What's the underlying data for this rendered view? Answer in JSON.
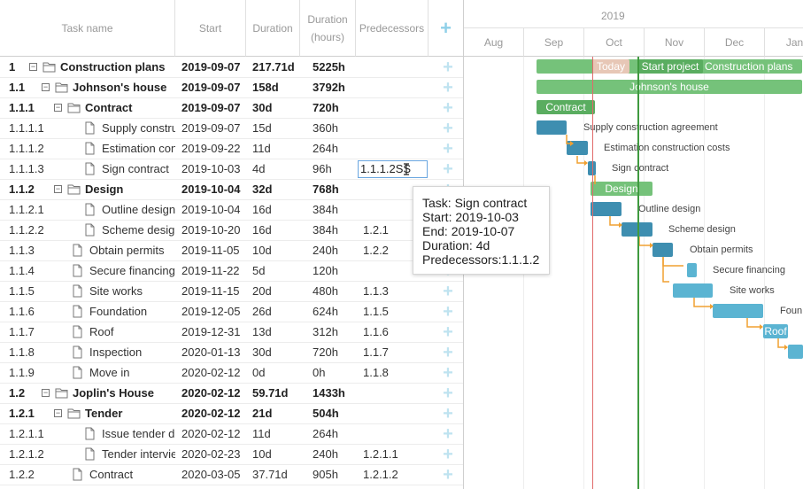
{
  "columns": {
    "task_name": "Task name",
    "start": "Start",
    "duration": "Duration",
    "duration_hours": "Duration (hours)",
    "predecessors": "Predecessors",
    "add": "+"
  },
  "rows": [
    {
      "wbs": "1",
      "name": "Construction plans",
      "start": "2019-09-07",
      "duration": "217.71d",
      "hours": "5225h",
      "pred": "",
      "bold": true,
      "summary": true,
      "level": 0
    },
    {
      "wbs": "1.1",
      "name": "Johnson's house",
      "start": "2019-09-07",
      "duration": "158d",
      "hours": "3792h",
      "pred": "",
      "bold": true,
      "summary": true,
      "level": 1
    },
    {
      "wbs": "1.1.1",
      "name": "Contract",
      "start": "2019-09-07",
      "duration": "30d",
      "hours": "720h",
      "pred": "",
      "bold": true,
      "summary": true,
      "level": 2
    },
    {
      "wbs": "1.1.1.1",
      "name": "Supply constru",
      "start": "2019-09-07",
      "duration": "15d",
      "hours": "360h",
      "pred": "",
      "bold": false,
      "summary": false,
      "level": 3
    },
    {
      "wbs": "1.1.1.2",
      "name": "Estimation con",
      "start": "2019-09-22",
      "duration": "11d",
      "hours": "264h",
      "pred": "",
      "bold": false,
      "summary": false,
      "level": 3
    },
    {
      "wbs": "1.1.1.3",
      "name": "Sign contract",
      "start": "2019-10-03",
      "duration": "4d",
      "hours": "96h",
      "pred": "",
      "bold": false,
      "summary": false,
      "level": 3
    },
    {
      "wbs": "1.1.2",
      "name": "Design",
      "start": "2019-10-04",
      "duration": "32d",
      "hours": "768h",
      "pred": "",
      "bold": true,
      "summary": true,
      "level": 2
    },
    {
      "wbs": "1.1.2.1",
      "name": "Outline design",
      "start": "2019-10-04",
      "duration": "16d",
      "hours": "384h",
      "pred": "",
      "bold": false,
      "summary": false,
      "level": 3
    },
    {
      "wbs": "1.1.2.2",
      "name": "Scheme desig",
      "start": "2019-10-20",
      "duration": "16d",
      "hours": "384h",
      "pred": "1.2.1",
      "bold": false,
      "summary": false,
      "level": 3
    },
    {
      "wbs": "1.1.3",
      "name": "Obtain permits",
      "start": "2019-11-05",
      "duration": "10d",
      "hours": "240h",
      "pred": "1.2.2",
      "bold": false,
      "summary": false,
      "level": 2
    },
    {
      "wbs": "1.1.4",
      "name": "Secure financing",
      "start": "2019-11-22",
      "duration": "5d",
      "hours": "120h",
      "pred": "",
      "bold": false,
      "summary": false,
      "level": 2
    },
    {
      "wbs": "1.1.5",
      "name": "Site works",
      "start": "2019-11-15",
      "duration": "20d",
      "hours": "480h",
      "pred": "1.1.3",
      "bold": false,
      "summary": false,
      "level": 2
    },
    {
      "wbs": "1.1.6",
      "name": "Foundation",
      "start": "2019-12-05",
      "duration": "26d",
      "hours": "624h",
      "pred": "1.1.5",
      "bold": false,
      "summary": false,
      "level": 2
    },
    {
      "wbs": "1.1.7",
      "name": "Roof",
      "start": "2019-12-31",
      "duration": "13d",
      "hours": "312h",
      "pred": "1.1.6",
      "bold": false,
      "summary": false,
      "level": 2
    },
    {
      "wbs": "1.1.8",
      "name": "Inspection",
      "start": "2020-01-13",
      "duration": "30d",
      "hours": "720h",
      "pred": "1.1.7",
      "bold": false,
      "summary": false,
      "level": 2
    },
    {
      "wbs": "1.1.9",
      "name": "Move in",
      "start": "2020-02-12",
      "duration": "0d",
      "hours": "0h",
      "pred": "1.1.8",
      "bold": false,
      "summary": false,
      "level": 2
    },
    {
      "wbs": "1.2",
      "name": "Joplin's House",
      "start": "2020-02-12",
      "duration": "59.71d",
      "hours": "1433h",
      "pred": "",
      "bold": true,
      "summary": true,
      "level": 1
    },
    {
      "wbs": "1.2.1",
      "name": "Tender",
      "start": "2020-02-12",
      "duration": "21d",
      "hours": "504h",
      "pred": "",
      "bold": true,
      "summary": true,
      "level": 2
    },
    {
      "wbs": "1.2.1.1",
      "name": "Issue tender d",
      "start": "2020-02-12",
      "duration": "11d",
      "hours": "264h",
      "pred": "",
      "bold": false,
      "summary": false,
      "level": 3
    },
    {
      "wbs": "1.2.1.2",
      "name": "Tender intervie",
      "start": "2020-02-23",
      "duration": "10d",
      "hours": "240h",
      "pred": "1.2.1.1",
      "bold": false,
      "summary": false,
      "level": 3
    },
    {
      "wbs": "1.2.2",
      "name": "Contract",
      "start": "2020-03-05",
      "duration": "37.71d",
      "hours": "905h",
      "pred": "1.2.1.2",
      "bold": false,
      "summary": false,
      "level": 2
    }
  ],
  "editor": {
    "value": "1.1.1.2SS"
  },
  "tooltip": {
    "task_label": "Task:",
    "task": "Sign contract",
    "start_label": "Start:",
    "start": "2019-10-03",
    "end_label": "End:",
    "end": "2019-10-07",
    "duration_label": "Duration:",
    "duration": "4d",
    "pred_label": "Predecessors:",
    "pred": "1.1.1.2"
  },
  "timeline": {
    "year": "2019",
    "months": [
      "Aug",
      "Sep",
      "Oct",
      "Nov",
      "Dec",
      "Jan"
    ],
    "today_label": "Today",
    "start_project_label": "Start project",
    "today_color": "#e06a6a",
    "start_project_color": "#3f9a3f",
    "bar_labels": {
      "construction_plans": "Construction plans",
      "johnsons_house": "Johnson's house",
      "contract": "Contract",
      "supply": "Supply construction agreement",
      "estimation": "Estimation construction costs",
      "sign": "Sign contract",
      "design": "Design",
      "outline": "Outline design",
      "scheme": "Scheme design",
      "permits": "Obtain permits",
      "financing": "Secure financing",
      "site": "Site works",
      "foundation": "Foun",
      "roof": "Roof"
    }
  }
}
